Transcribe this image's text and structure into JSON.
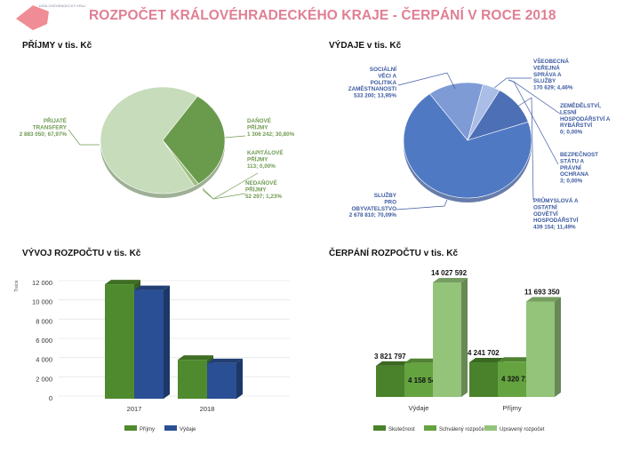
{
  "header": {
    "title": "ROZPOČET KRÁLOVÉHRADECKÉHO KRAJE - ČERPÁNÍ V ROCE 2018",
    "logo_text": "KRÁLOVÉHRADECKÝ KRAJ",
    "logo_color": "#f08c95"
  },
  "chart_data": [
    {
      "type": "pie",
      "title": "PŘÍJMY v tis. Kč",
      "slices": [
        {
          "name": "DAŇOVÉ PŘÍJMY",
          "value": 1306242,
          "label": "1 306 242; 30,80%",
          "color": "#6a9a4c"
        },
        {
          "name": "KAPITÁLOVÉ PŘÍJMY",
          "value": 113,
          "label": "113; 0,00%",
          "color": "#4f7a35"
        },
        {
          "name": "NEDAŇOVÉ PŘÍJMY",
          "value": 52297,
          "label": "52 297; 1,23%",
          "color": "#9cc081"
        },
        {
          "name": "PŘIJATÉ TRANSFERY",
          "value": 2883050,
          "label": "2 883 050; 67,97%",
          "color": "#c6dcba"
        }
      ]
    },
    {
      "type": "pie",
      "title": "VÝDAJE v tis. Kč",
      "slices": [
        {
          "name": "VŠEOBECNÁ VEŘEJNÁ SPRÁVA A SLUŽBY",
          "value": 170629,
          "label": "170 629; 4,46%",
          "color": "#a9bde6"
        },
        {
          "name": "PRŮMYSLOVÁ A OSTATNÍ ODVĚTVÍ HOSPODÁŘSTVÍ",
          "value": 439154,
          "label": "439 154; 11,49%",
          "color": "#4d6fb5"
        },
        {
          "name": "ZEMĚDĚLSTVÍ, LESNÍ HOSPODÁŘSTVÍ A RYBÁŘSTVÍ",
          "value": 0,
          "label": "0; 0,00%",
          "color": "#3c5ea8"
        },
        {
          "name": "BEZPEČNOST STÁTU A PRÁVNÍ OCHRANA",
          "value": 3,
          "label": "3; 0,00%",
          "color": "#3c5ea8"
        },
        {
          "name": "SLUŽBY PRO OBYVATELSTVO",
          "value": 2678810,
          "label": "2 678 810; 70,09%",
          "color": "#5079c4"
        },
        {
          "name": "SOCIÁLNÍ VĚCI A POLITIKA ZAMĚSTNANOSTI",
          "value": 533200,
          "label": "533 200; 13,95%",
          "color": "#7f9bd6"
        }
      ]
    },
    {
      "type": "bar",
      "title": "VÝVOJ ROZPOČTU v tis. Kč",
      "ylabel": "Tisíce",
      "categories": [
        "2017",
        "2018"
      ],
      "ylim": [
        0,
        12000
      ],
      "yticks": [
        "0",
        "2 000",
        "4 000",
        "6 000",
        "8 000",
        "10 000",
        "12 000"
      ],
      "grid": true,
      "legend": "bottom",
      "series": [
        {
          "name": "Příjmy",
          "values": [
            11900,
            4050
          ],
          "color": "#4f8a2e"
        },
        {
          "name": "Výdaje",
          "values": [
            11300,
            3700
          ],
          "color": "#2a4f94"
        }
      ]
    },
    {
      "type": "bar",
      "title": "ČERPÁNÍ ROZPOČTU v tis. Kč",
      "categories": [
        "Výdaje",
        "Příjmy"
      ],
      "grid": false,
      "legend": "bottom",
      "series": [
        {
          "name": "Skutečnost",
          "values": [
            3821797,
            4241702
          ],
          "labels": [
            "3 821 797",
            "4 241 702"
          ],
          "color": "#4a822b"
        },
        {
          "name": "Schválený rozpočet",
          "values": [
            4158545,
            4320719
          ],
          "labels": [
            "4 158 545",
            "4 320 719"
          ],
          "color": "#65a340"
        },
        {
          "name": "Upravený rozpočet",
          "values": [
            14027592,
            11693350
          ],
          "labels": [
            "14 027 592",
            "11 693 350"
          ],
          "color": "#93c47a"
        }
      ]
    }
  ]
}
